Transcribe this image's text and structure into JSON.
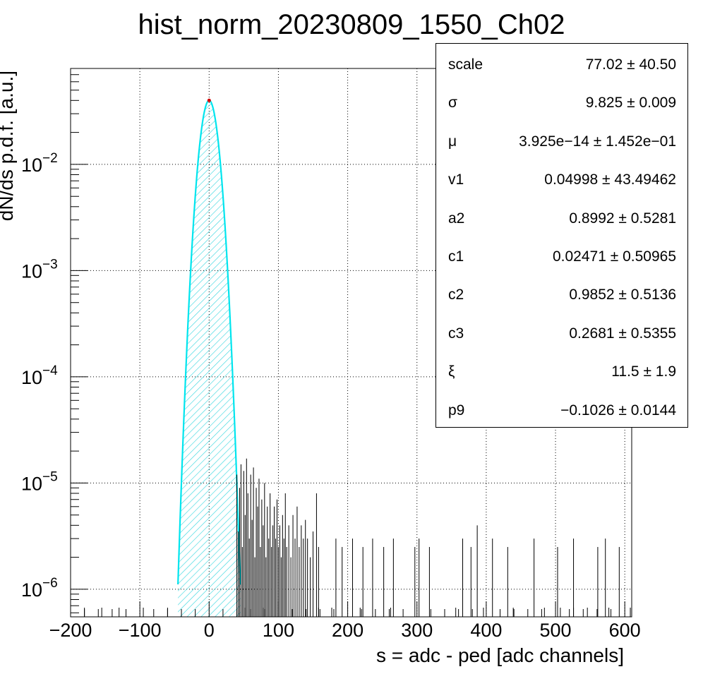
{
  "chart_data": {
    "type": "histogram",
    "title": "hist_norm_20230809_1550_Ch02",
    "xlabel": "s = adc - ped [adc channels]",
    "ylabel": "dN/ds p.d.f. [a.u.]",
    "xlim": [
      -200,
      610
    ],
    "ylim": [
      5.5e-07,
      0.08
    ],
    "y_scale": "log",
    "grid": true,
    "x_ticks": [
      "−200",
      "−100",
      "0",
      "100",
      "200",
      "300",
      "400",
      "500",
      "600"
    ],
    "x_tick_values": [
      -200,
      -100,
      0,
      100,
      200,
      300,
      400,
      500,
      600
    ],
    "y_ticks": [
      {
        "base": "10",
        "exp": "−2",
        "value": 0.01
      },
      {
        "base": "10",
        "exp": "−3",
        "value": 0.001
      },
      {
        "base": "10",
        "exp": "−4",
        "value": 0.0001
      },
      {
        "base": "10",
        "exp": "−5",
        "value": 1e-05
      },
      {
        "base": "10",
        "exp": "−6",
        "value": 1e-06
      }
    ],
    "peak": {
      "mu": 0,
      "sigma": 9.825,
      "amplitude": 0.04
    },
    "fit_color": "#00e5ee",
    "hatch_color": "#40d8e0",
    "tail_spikes": [
      {
        "x": 40,
        "y": 1.2e-05
      },
      {
        "x": 42,
        "y": 3.5e-06
      },
      {
        "x": 44,
        "y": 9e-06
      },
      {
        "x": 46,
        "y": 1.5e-05
      },
      {
        "x": 48,
        "y": 2.5e-06
      },
      {
        "x": 50,
        "y": 1.3e-05
      },
      {
        "x": 52,
        "y": 5e-06
      },
      {
        "x": 54,
        "y": 1.7e-05
      },
      {
        "x": 56,
        "y": 8e-06
      },
      {
        "x": 58,
        "y": 3e-06
      },
      {
        "x": 60,
        "y": 1.2e-05
      },
      {
        "x": 62,
        "y": 4.5e-06
      },
      {
        "x": 64,
        "y": 1.4e-05
      },
      {
        "x": 66,
        "y": 2e-06
      },
      {
        "x": 68,
        "y": 9e-06
      },
      {
        "x": 70,
        "y": 6e-06
      },
      {
        "x": 72,
        "y": 1.1e-05
      },
      {
        "x": 74,
        "y": 2.5e-06
      },
      {
        "x": 76,
        "y": 7e-06
      },
      {
        "x": 78,
        "y": 4e-06
      },
      {
        "x": 80,
        "y": 1e-05
      },
      {
        "x": 82,
        "y": 2e-06
      },
      {
        "x": 84,
        "y": 6e-06
      },
      {
        "x": 86,
        "y": 3e-06
      },
      {
        "x": 88,
        "y": 8e-06
      },
      {
        "x": 90,
        "y": 2.5e-06
      },
      {
        "x": 92,
        "y": 4e-06
      },
      {
        "x": 94,
        "y": 6e-06
      },
      {
        "x": 96,
        "y": 3e-06
      },
      {
        "x": 98,
        "y": 7e-06
      },
      {
        "x": 100,
        "y": 2.5e-06
      },
      {
        "x": 102,
        "y": 4e-06
      },
      {
        "x": 104,
        "y": 2e-06
      },
      {
        "x": 106,
        "y": 5e-06
      },
      {
        "x": 108,
        "y": 3e-06
      },
      {
        "x": 110,
        "y": 8e-06
      },
      {
        "x": 112,
        "y": 2.5e-06
      },
      {
        "x": 115,
        "y": 4e-06
      },
      {
        "x": 118,
        "y": 2e-06
      },
      {
        "x": 121,
        "y": 5e-06
      },
      {
        "x": 124,
        "y": 3e-06
      },
      {
        "x": 127,
        "y": 6e-06
      },
      {
        "x": 130,
        "y": 2.5e-06
      },
      {
        "x": 133,
        "y": 4e-06
      },
      {
        "x": 136,
        "y": 3e-06
      },
      {
        "x": 139,
        "y": 4.5e-06
      },
      {
        "x": 142,
        "y": 3e-06
      },
      {
        "x": 146,
        "y": 2e-06
      },
      {
        "x": 150,
        "y": 3.5e-06
      },
      {
        "x": 155,
        "y": 8e-06
      },
      {
        "x": 158,
        "y": 2.5e-06
      },
      {
        "x": 183,
        "y": 3e-06
      },
      {
        "x": 192,
        "y": 2.5e-06
      },
      {
        "x": 207,
        "y": 3e-06
      },
      {
        "x": 222,
        "y": 2.5e-06
      },
      {
        "x": 236,
        "y": 3e-06
      },
      {
        "x": 252,
        "y": 2.5e-06
      },
      {
        "x": 266,
        "y": 3e-06
      },
      {
        "x": 297,
        "y": 2.5e-06
      },
      {
        "x": 303,
        "y": 3e-06
      },
      {
        "x": 318,
        "y": 2.5e-06
      },
      {
        "x": 366,
        "y": 3e-06
      },
      {
        "x": 378,
        "y": 2.5e-06
      },
      {
        "x": 387,
        "y": 4e-06
      },
      {
        "x": 409,
        "y": 3e-06
      },
      {
        "x": 431,
        "y": 2.5e-06
      },
      {
        "x": 469,
        "y": 3e-06
      },
      {
        "x": 503,
        "y": 2.5e-06
      },
      {
        "x": 526,
        "y": 3e-06
      },
      {
        "x": 561,
        "y": 2.5e-06
      },
      {
        "x": 572,
        "y": 3e-06
      },
      {
        "x": 592,
        "y": 2.5e-06
      }
    ],
    "floor_spikes": [
      -180,
      -155,
      -130,
      -95,
      -60,
      52,
      78,
      158,
      177,
      218,
      262,
      356,
      396,
      439,
      484,
      507,
      526,
      546,
      577,
      608
    ]
  },
  "stats": [
    {
      "name": "scale",
      "value": "77.02 ± 40.50"
    },
    {
      "name": "σ",
      "value": "9.825 ± 0.009"
    },
    {
      "name": "μ",
      "value": "3.925e−14 ± 1.452e−01"
    },
    {
      "name": "v1",
      "value": "0.04998 ± 43.49462"
    },
    {
      "name": "a2",
      "value": "0.8992 ± 0.5281"
    },
    {
      "name": "c1",
      "value": "0.02471 ± 0.50965"
    },
    {
      "name": "c2",
      "value": "0.9852 ± 0.5136"
    },
    {
      "name": "c3",
      "value": "0.2681 ± 0.5355"
    },
    {
      "name": "ξ",
      "value": "11.5 ± 1.9"
    },
    {
      "name": "p9",
      "value": "−0.1026 ± 0.0144"
    }
  ]
}
